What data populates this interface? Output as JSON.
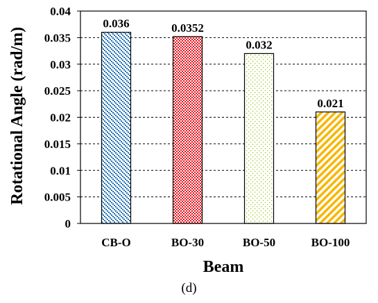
{
  "chart_data": {
    "type": "bar",
    "categories": [
      "CB-O",
      "BO-30",
      "BO-50",
      "BO-100"
    ],
    "values": [
      0.036,
      0.0352,
      0.032,
      0.021
    ],
    "data_labels": [
      "0.036",
      "0.0352",
      "0.032",
      "0.021"
    ],
    "xlabel": "Beam",
    "ylabel": "Rotational Angle (rad/m)",
    "ylim": [
      0,
      0.04
    ],
    "yticks": [
      0,
      0.005,
      0.01,
      0.015,
      0.02,
      0.025,
      0.03,
      0.035,
      0.04
    ],
    "ytick_labels": [
      "0",
      "0.005",
      "0.01",
      "0.015",
      "0.02",
      "0.025",
      "0.03",
      "0.035",
      "0.04"
    ],
    "grid": "horizontal dashed",
    "bar_colors": [
      "#1f6fb4",
      "#e8101c",
      "#9cc820",
      "#f7b600"
    ],
    "bar_patterns": [
      "dots-diagonal",
      "checker",
      "dots-sparse",
      "diagonal-stripes"
    ]
  },
  "caption": "(d)"
}
